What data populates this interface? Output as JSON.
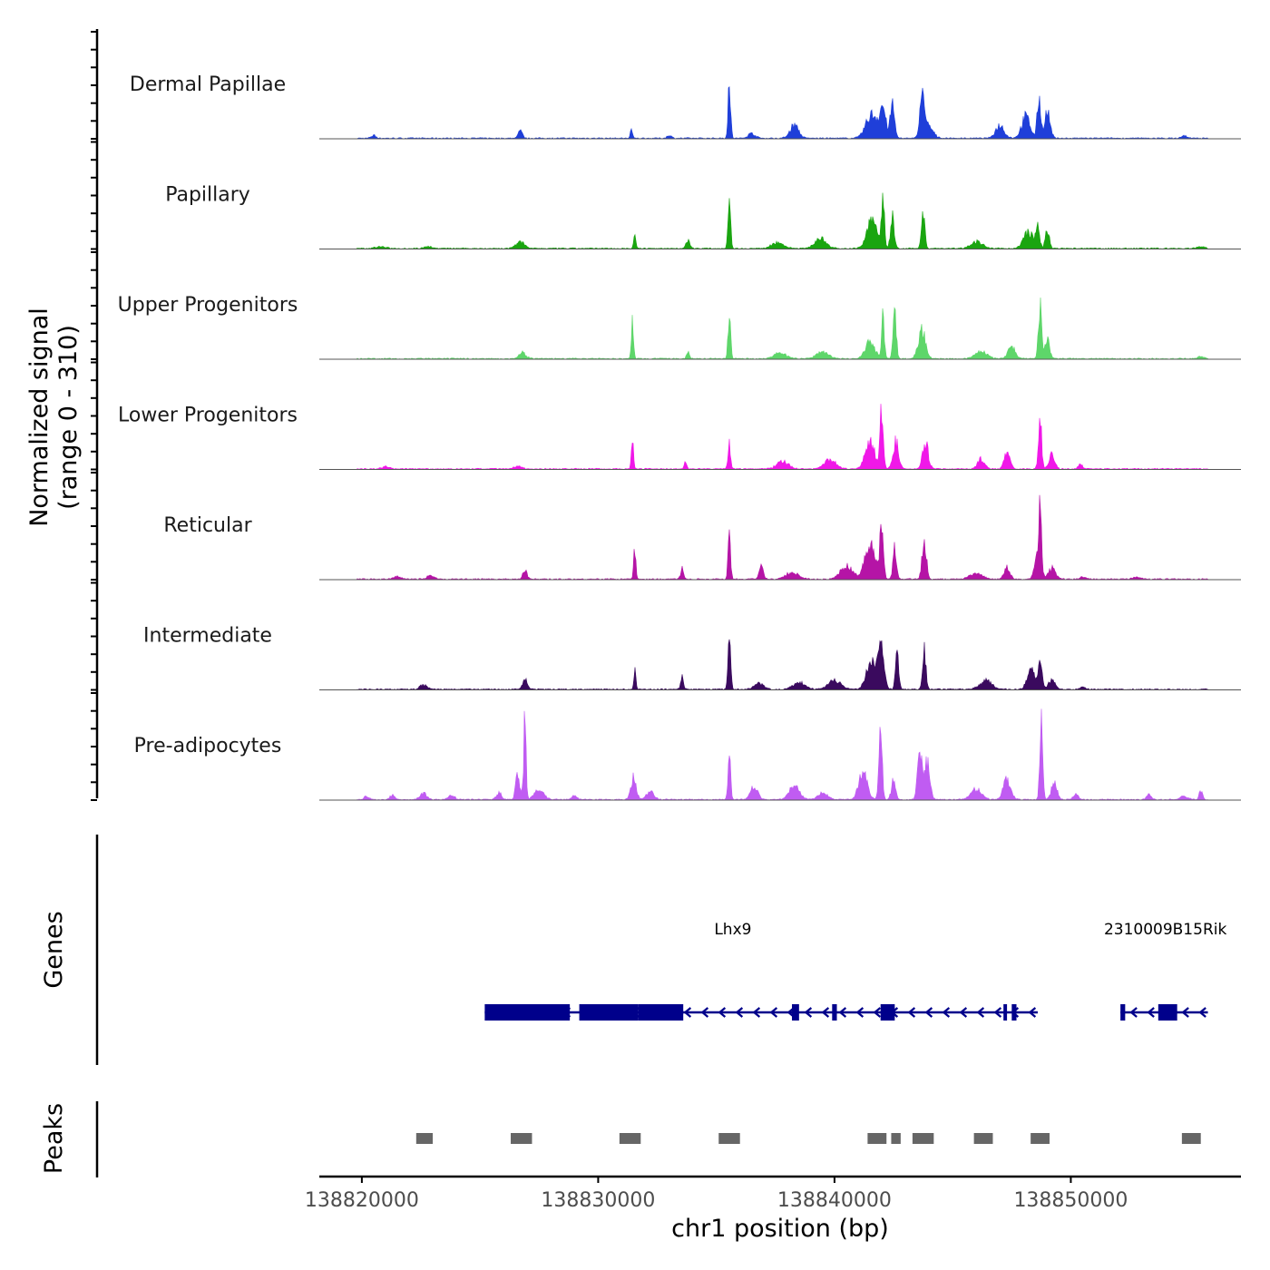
{
  "chart_data": {
    "type": "area",
    "title": "",
    "ylabel_line1": "Normalized signal",
    "ylabel_line2": "(range 0 - 310)",
    "y_range": [
      0,
      310
    ],
    "xlabel": "chr1 position (bp)",
    "x_range": [
      138818200,
      138857200
    ],
    "x_ticks": [
      {
        "value": 138820000,
        "label": "138820000"
      },
      {
        "value": 138830000,
        "label": "138830000"
      },
      {
        "value": 138840000,
        "label": "138840000"
      },
      {
        "value": 138850000,
        "label": "138850000"
      }
    ],
    "signal_x_range": [
      138818200,
      138857200
    ],
    "series": [
      {
        "name": "Dermal Papillae",
        "color": "#1f3fd9",
        "peaks": [
          [
            138820500,
            12,
            100
          ],
          [
            138826700,
            30,
            90
          ],
          [
            138831400,
            40,
            45
          ],
          [
            138833000,
            12,
            90
          ],
          [
            138835550,
            215,
            55
          ],
          [
            138836500,
            20,
            150
          ],
          [
            138838300,
            55,
            180
          ],
          [
            138841600,
            100,
            260
          ],
          [
            138842050,
            115,
            120
          ],
          [
            138842450,
            140,
            90
          ],
          [
            138843700,
            200,
            70
          ],
          [
            138843900,
            60,
            220
          ],
          [
            138847000,
            55,
            180
          ],
          [
            138848100,
            90,
            180
          ],
          [
            138848650,
            175,
            70
          ],
          [
            138849000,
            110,
            120
          ],
          [
            138854800,
            10,
            120
          ]
        ]
      },
      {
        "name": "Papillary",
        "color": "#1aa510",
        "peaks": [
          [
            138820800,
            8,
            200
          ],
          [
            138822800,
            10,
            150
          ],
          [
            138826700,
            30,
            180
          ],
          [
            138831550,
            55,
            45
          ],
          [
            138833800,
            30,
            90
          ],
          [
            138835550,
            185,
            55
          ],
          [
            138837600,
            25,
            250
          ],
          [
            138839400,
            40,
            250
          ],
          [
            138841600,
            120,
            220
          ],
          [
            138842050,
            195,
            60
          ],
          [
            138842450,
            135,
            80
          ],
          [
            138843750,
            150,
            70
          ],
          [
            138846000,
            28,
            250
          ],
          [
            138848200,
            70,
            200
          ],
          [
            138848600,
            80,
            80
          ],
          [
            138849000,
            85,
            80
          ],
          [
            138855500,
            8,
            150
          ]
        ]
      },
      {
        "name": "Upper Progenitors",
        "color": "#5ed66a",
        "peaks": [
          [
            138826800,
            25,
            150
          ],
          [
            138831450,
            175,
            45
          ],
          [
            138833800,
            25,
            60
          ],
          [
            138835550,
            180,
            55
          ],
          [
            138837700,
            25,
            250
          ],
          [
            138839500,
            30,
            250
          ],
          [
            138841500,
            70,
            200
          ],
          [
            138842050,
            170,
            60
          ],
          [
            138842550,
            180,
            70
          ],
          [
            138843700,
            120,
            150
          ],
          [
            138846200,
            30,
            250
          ],
          [
            138847500,
            50,
            150
          ],
          [
            138848700,
            210,
            70
          ],
          [
            138849000,
            80,
            100
          ],
          [
            138855500,
            8,
            150
          ]
        ]
      },
      {
        "name": "Lower Progenitors",
        "color": "#f018e8",
        "peaks": [
          [
            138821000,
            10,
            150
          ],
          [
            138826600,
            12,
            150
          ],
          [
            138831450,
            150,
            45
          ],
          [
            138833700,
            28,
            60
          ],
          [
            138835550,
            100,
            55
          ],
          [
            138837800,
            30,
            250
          ],
          [
            138839800,
            40,
            250
          ],
          [
            138841500,
            110,
            200
          ],
          [
            138842000,
            240,
            70
          ],
          [
            138842600,
            110,
            120
          ],
          [
            138843850,
            110,
            120
          ],
          [
            138846200,
            40,
            150
          ],
          [
            138847300,
            75,
            120
          ],
          [
            138848700,
            190,
            70
          ],
          [
            138849200,
            60,
            120
          ],
          [
            138850400,
            20,
            80
          ]
        ]
      },
      {
        "name": "Reticular",
        "color": "#b514a6",
        "peaks": [
          [
            138821500,
            10,
            150
          ],
          [
            138822900,
            15,
            150
          ],
          [
            138826900,
            40,
            90
          ],
          [
            138831550,
            130,
            45
          ],
          [
            138833550,
            50,
            60
          ],
          [
            138835550,
            165,
            55
          ],
          [
            138836900,
            50,
            90
          ],
          [
            138838200,
            30,
            250
          ],
          [
            138840500,
            55,
            250
          ],
          [
            138841500,
            140,
            220
          ],
          [
            138842000,
            240,
            70
          ],
          [
            138842550,
            145,
            70
          ],
          [
            138843800,
            160,
            90
          ],
          [
            138846000,
            25,
            250
          ],
          [
            138847300,
            50,
            120
          ],
          [
            138848600,
            110,
            120
          ],
          [
            138848700,
            205,
            60
          ],
          [
            138849200,
            45,
            150
          ],
          [
            138850500,
            10,
            120
          ],
          [
            138852800,
            10,
            150
          ]
        ]
      },
      {
        "name": "Intermediate",
        "color": "#3a0a5e",
        "peaks": [
          [
            138822600,
            20,
            150
          ],
          [
            138826900,
            45,
            90
          ],
          [
            138831550,
            80,
            45
          ],
          [
            138833550,
            55,
            60
          ],
          [
            138835550,
            220,
            55
          ],
          [
            138836800,
            25,
            200
          ],
          [
            138838500,
            30,
            250
          ],
          [
            138840000,
            40,
            250
          ],
          [
            138841600,
            130,
            220
          ],
          [
            138842000,
            150,
            120
          ],
          [
            138842650,
            135,
            70
          ],
          [
            138843800,
            160,
            70
          ],
          [
            138846400,
            40,
            250
          ],
          [
            138848300,
            90,
            150
          ],
          [
            138848700,
            120,
            80
          ],
          [
            138849200,
            40,
            150
          ],
          [
            138850500,
            10,
            120
          ]
        ]
      },
      {
        "name": "Pre-adipocytes",
        "color": "#c05cf2",
        "peaks": [
          [
            138820200,
            15,
            100
          ],
          [
            138821300,
            20,
            100
          ],
          [
            138822600,
            25,
            150
          ],
          [
            138823800,
            20,
            120
          ],
          [
            138825800,
            30,
            100
          ],
          [
            138826600,
            110,
            90
          ],
          [
            138826900,
            345,
            50
          ],
          [
            138827500,
            40,
            200
          ],
          [
            138829000,
            18,
            100
          ],
          [
            138831500,
            90,
            110
          ],
          [
            138832200,
            35,
            150
          ],
          [
            138835550,
            175,
            55
          ],
          [
            138836600,
            60,
            150
          ],
          [
            138838300,
            60,
            220
          ],
          [
            138839500,
            30,
            200
          ],
          [
            138841200,
            110,
            180
          ],
          [
            138841950,
            300,
            70
          ],
          [
            138842500,
            80,
            90
          ],
          [
            138843600,
            190,
            90
          ],
          [
            138843900,
            170,
            120
          ],
          [
            138846000,
            45,
            220
          ],
          [
            138847300,
            85,
            150
          ],
          [
            138848750,
            340,
            60
          ],
          [
            138849300,
            70,
            120
          ],
          [
            138850200,
            25,
            100
          ],
          [
            138853300,
            20,
            100
          ],
          [
            138854800,
            15,
            150
          ],
          [
            138855500,
            35,
            70
          ]
        ]
      }
    ],
    "genes": [
      {
        "name": "Lhx9",
        "label_x": 138835700,
        "strand": "-",
        "start": 138825200,
        "end": 138848600,
        "exons": [
          [
            138825200,
            138828800
          ],
          [
            138829200,
            138831700
          ],
          [
            138831700,
            138833600
          ],
          [
            138838200,
            138838500
          ],
          [
            138839900,
            138840100
          ],
          [
            138841950,
            138842550
          ],
          [
            138847150,
            138847300
          ],
          [
            138847500,
            138847700
          ]
        ]
      },
      {
        "name": "2310009B15Rik",
        "label_x": 138854000,
        "strand": "-",
        "start": 138852100,
        "end": 138855800,
        "exons": [
          [
            138852100,
            138852300
          ],
          [
            138853700,
            138854500
          ]
        ]
      }
    ],
    "peaks": [
      [
        138822300,
        138823000
      ],
      [
        138826300,
        138827200
      ],
      [
        138830900,
        138831800
      ],
      [
        138835100,
        138836000
      ],
      [
        138841400,
        138842200
      ],
      [
        138842400,
        138842800
      ],
      [
        138843300,
        138844200
      ],
      [
        138845900,
        138846700
      ],
      [
        138848300,
        138849100
      ],
      [
        138854700,
        138855500
      ]
    ],
    "track_labels": {
      "genes": "Genes",
      "peaks": "Peaks"
    }
  }
}
